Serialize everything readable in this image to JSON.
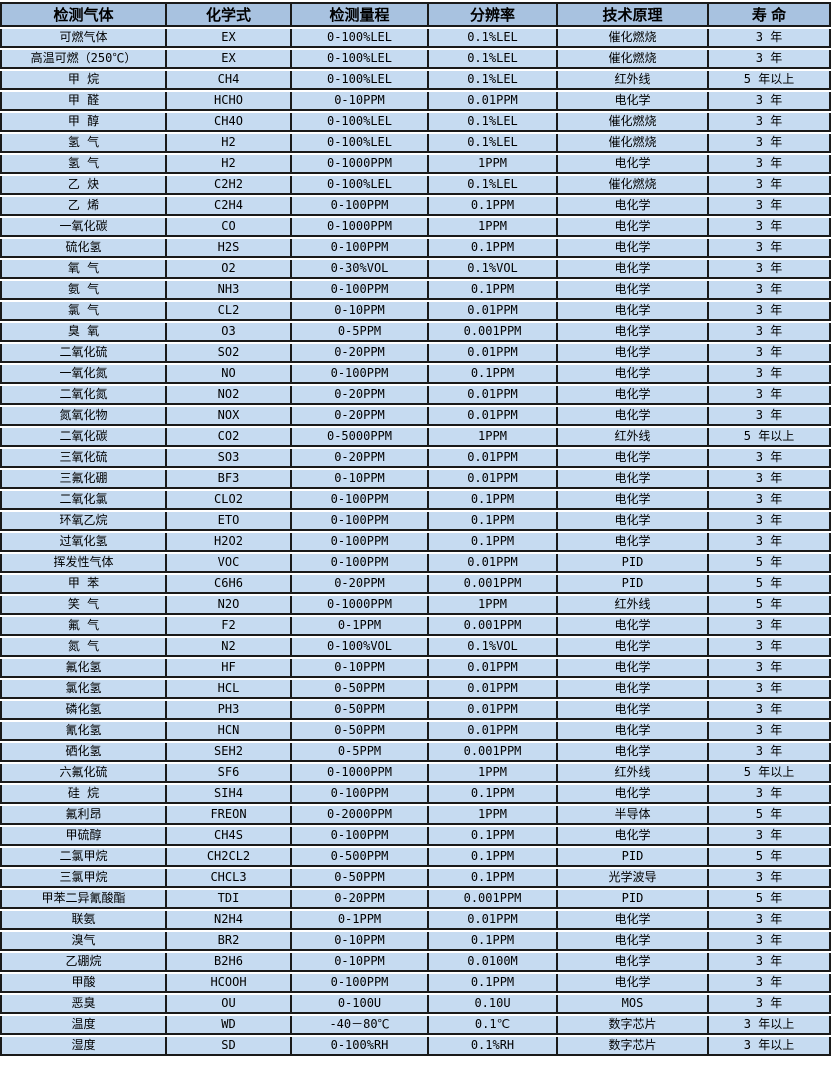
{
  "colors": {
    "header_bg": "#a8c2e0",
    "row_bg": "#c6dbf1",
    "grid_line": "#1a1a1a",
    "text": "#000000",
    "row_gap": "#ffffff"
  },
  "table": {
    "headers": [
      "检测气体",
      "化学式",
      "检测量程",
      "分辨率",
      "技术原理",
      "寿 命"
    ],
    "column_keys": [
      "gas",
      "formula",
      "range",
      "resolution",
      "principle",
      "life"
    ],
    "rows": [
      [
        "可燃气体",
        "EX",
        "0-100%LEL",
        "0.1%LEL",
        "催化燃烧",
        "3 年"
      ],
      [
        "高温可燃（250℃）",
        "EX",
        "0-100%LEL",
        "0.1%LEL",
        "催化燃烧",
        "3 年"
      ],
      [
        "甲 烷",
        "CH4",
        "0-100%LEL",
        "0.1%LEL",
        "红外线",
        "5 年以上"
      ],
      [
        "甲 醛",
        "HCHO",
        "0-10PPM",
        "0.01PPM",
        "电化学",
        "3 年"
      ],
      [
        "甲 醇",
        "CH4O",
        "0-100%LEL",
        "0.1%LEL",
        "催化燃烧",
        "3 年"
      ],
      [
        "氢 气",
        "H2",
        "0-100%LEL",
        "0.1%LEL",
        "催化燃烧",
        "3 年"
      ],
      [
        "氢 气",
        "H2",
        "0-1000PPM",
        "1PPM",
        "电化学",
        "3 年"
      ],
      [
        "乙 炔",
        "C2H2",
        "0-100%LEL",
        "0.1%LEL",
        "催化燃烧",
        "3 年"
      ],
      [
        "乙 烯",
        "C2H4",
        "0-100PPM",
        "0.1PPM",
        "电化学",
        "3 年"
      ],
      [
        "一氧化碳",
        "CO",
        "0-1000PPM",
        "1PPM",
        "电化学",
        "3 年"
      ],
      [
        "硫化氢",
        "H2S",
        "0-100PPM",
        "0.1PPM",
        "电化学",
        "3 年"
      ],
      [
        "氧 气",
        "O2",
        "0-30%VOL",
        "0.1%VOL",
        "电化学",
        "3 年"
      ],
      [
        "氨 气",
        "NH3",
        "0-100PPM",
        "0.1PPM",
        "电化学",
        "3 年"
      ],
      [
        "氯 气",
        "CL2",
        "0-10PPM",
        "0.01PPM",
        "电化学",
        "3 年"
      ],
      [
        "臭 氧",
        "O3",
        "0-5PPM",
        "0.001PPM",
        "电化学",
        "3 年"
      ],
      [
        "二氧化硫",
        "SO2",
        "0-20PPM",
        "0.01PPM",
        "电化学",
        "3 年"
      ],
      [
        "一氧化氮",
        "NO",
        "0-100PPM",
        "0.1PPM",
        "电化学",
        "3 年"
      ],
      [
        "二氧化氮",
        "NO2",
        "0-20PPM",
        "0.01PPM",
        "电化学",
        "3 年"
      ],
      [
        "氮氧化物",
        "NOX",
        "0-20PPM",
        "0.01PPM",
        "电化学",
        "3 年"
      ],
      [
        "二氧化碳",
        "CO2",
        "0-5000PPM",
        "1PPM",
        "红外线",
        "5 年以上"
      ],
      [
        "三氧化硫",
        "SO3",
        "0-20PPM",
        "0.01PPM",
        "电化学",
        "3 年"
      ],
      [
        "三氟化硼",
        "BF3",
        "0-10PPM",
        "0.01PPM",
        "电化学",
        "3 年"
      ],
      [
        "二氧化氯",
        "CLO2",
        "0-100PPM",
        "0.1PPM",
        "电化学",
        "3 年"
      ],
      [
        "环氧乙烷",
        "ETO",
        "0-100PPM",
        "0.1PPM",
        "电化学",
        "3 年"
      ],
      [
        "过氧化氢",
        "H2O2",
        "0-100PPM",
        "0.1PPM",
        "电化学",
        "3 年"
      ],
      [
        "挥发性气体",
        "VOC",
        "0-100PPM",
        "0.01PPM",
        "PID",
        "5 年"
      ],
      [
        "甲 苯",
        "C6H6",
        "0-20PPM",
        "0.001PPM",
        "PID",
        "5 年"
      ],
      [
        "笑 气",
        "N2O",
        "0-1000PPM",
        "1PPM",
        "红外线",
        "5 年"
      ],
      [
        "氟 气",
        "F2",
        "0-1PPM",
        "0.001PPM",
        "电化学",
        "3 年"
      ],
      [
        "氮 气",
        "N2",
        "0-100%VOL",
        "0.1%VOL",
        "电化学",
        "3 年"
      ],
      [
        "氟化氢",
        "HF",
        "0-10PPM",
        "0.01PPM",
        "电化学",
        "3 年"
      ],
      [
        "氯化氢",
        "HCL",
        "0-50PPM",
        "0.01PPM",
        "电化学",
        "3 年"
      ],
      [
        "磷化氢",
        "PH3",
        "0-50PPM",
        "0.01PPM",
        "电化学",
        "3 年"
      ],
      [
        "氰化氢",
        "HCN",
        "0-50PPM",
        "0.01PPM",
        "电化学",
        "3 年"
      ],
      [
        "硒化氢",
        "SEH2",
        "0-5PPM",
        "0.001PPM",
        "电化学",
        "3 年"
      ],
      [
        "六氟化硫",
        "SF6",
        "0-1000PPM",
        "1PPM",
        "红外线",
        "5 年以上"
      ],
      [
        "硅 烷",
        "SIH4",
        "0-100PPM",
        "0.1PPM",
        "电化学",
        "3 年"
      ],
      [
        "氟利昂",
        "FREON",
        "0-2000PPM",
        "1PPM",
        "半导体",
        "5 年"
      ],
      [
        "甲硫醇",
        "CH4S",
        "0-100PPM",
        "0.1PPM",
        "电化学",
        "3 年"
      ],
      [
        "二氯甲烷",
        "CH2CL2",
        "0-500PPM",
        "0.1PPM",
        "PID",
        "5 年"
      ],
      [
        "三氯甲烷",
        "CHCL3",
        "0-50PPM",
        "0.1PPM",
        "光学波导",
        "3 年"
      ],
      [
        "甲苯二异氰酸酯",
        "TDI",
        "0-20PPM",
        "0.001PPM",
        "PID",
        "5 年"
      ],
      [
        "联氨",
        "N2H4",
        "0-1PPM",
        "0.01PPM",
        "电化学",
        "3 年"
      ],
      [
        "溴气",
        "BR2",
        "0-10PPM",
        "0.1PPM",
        "电化学",
        "3 年"
      ],
      [
        "乙硼烷",
        "B2H6",
        "0-10PPM",
        "0.0100M",
        "电化学",
        "3 年"
      ],
      [
        "甲酸",
        "HCOOH",
        "0-100PPM",
        "0.1PPM",
        "电化学",
        "3 年"
      ],
      [
        "恶臭",
        "OU",
        "0-100U",
        "0.10U",
        "MOS",
        "3 年"
      ],
      [
        "温度",
        "WD",
        "-40－80℃",
        "0.1℃",
        "数字芯片",
        "3 年以上"
      ],
      [
        "湿度",
        "SD",
        "0-100%RH",
        "0.1%RH",
        "数字芯片",
        "3 年以上"
      ]
    ]
  }
}
